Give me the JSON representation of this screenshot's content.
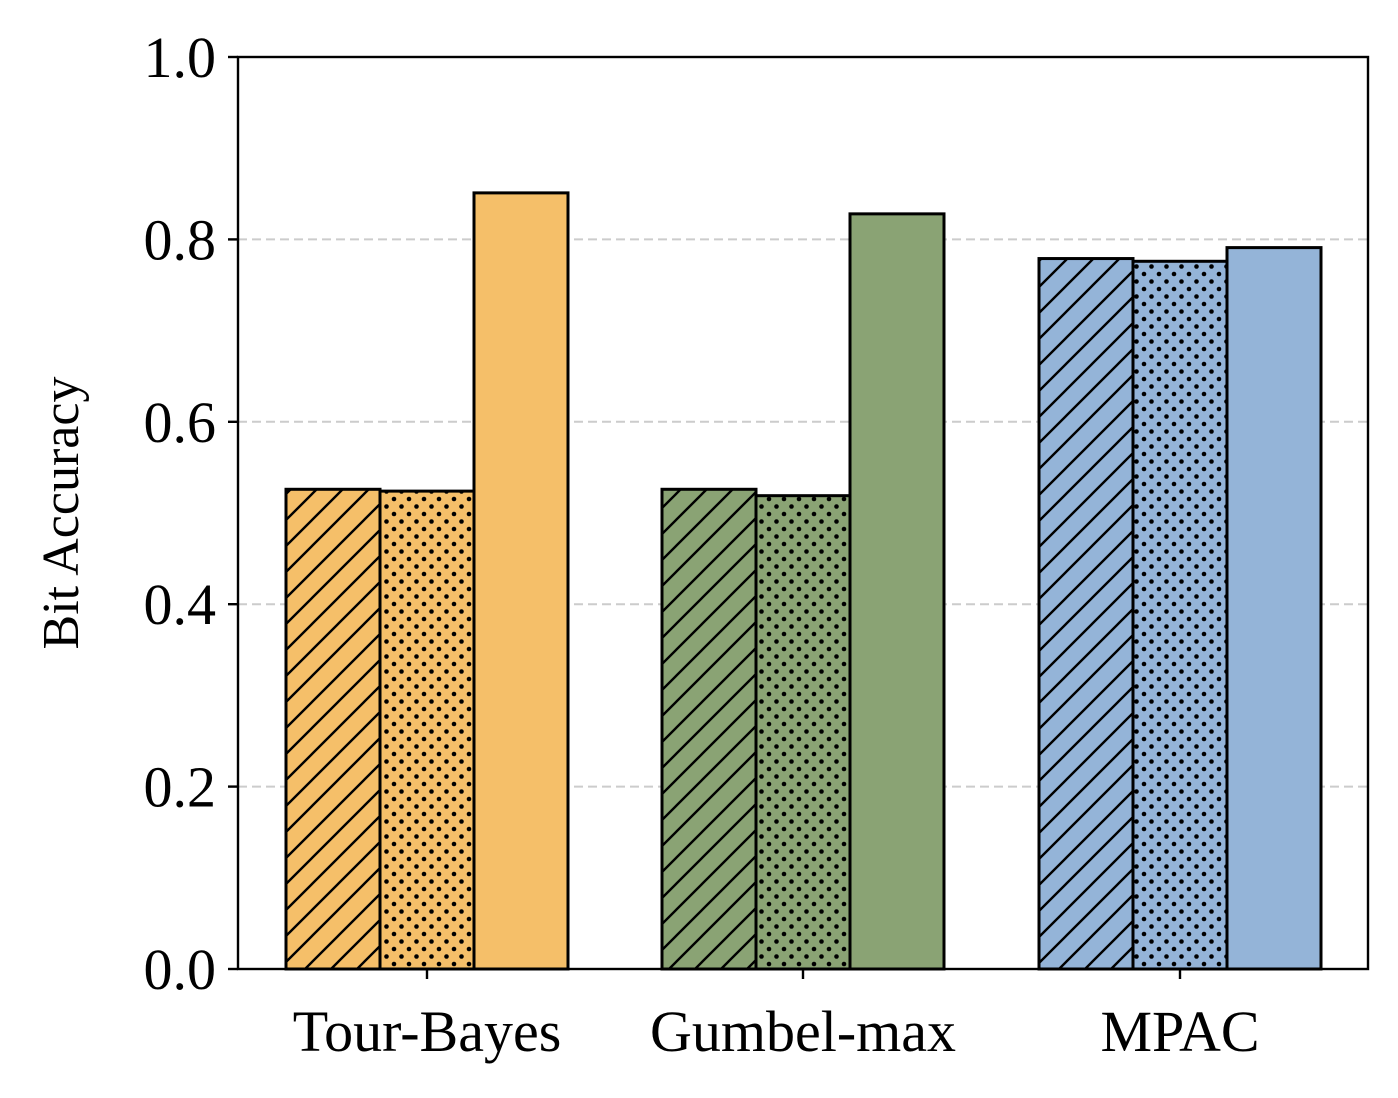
{
  "chart_data": {
    "type": "bar",
    "title": "",
    "xlabel": "",
    "ylabel": "Bit Accuracy",
    "ylim": [
      0,
      1.0
    ],
    "yticks": [
      "0.0",
      "0.2",
      "0.4",
      "0.6",
      "0.8",
      "1.0"
    ],
    "grid": "y-dashed",
    "legend": "none",
    "categories": [
      "Tour-Bayes",
      "Gumbel-max",
      "MPAC"
    ],
    "category_colors": [
      "#f5bf69",
      "#8aa374",
      "#94b4d8"
    ],
    "series": [
      {
        "pattern": "hatch",
        "values": [
          0.526,
          0.526,
          0.779
        ]
      },
      {
        "pattern": "dots",
        "values": [
          0.524,
          0.519,
          0.776
        ]
      },
      {
        "pattern": "solid",
        "values": [
          0.851,
          0.828,
          0.791
        ]
      }
    ]
  }
}
